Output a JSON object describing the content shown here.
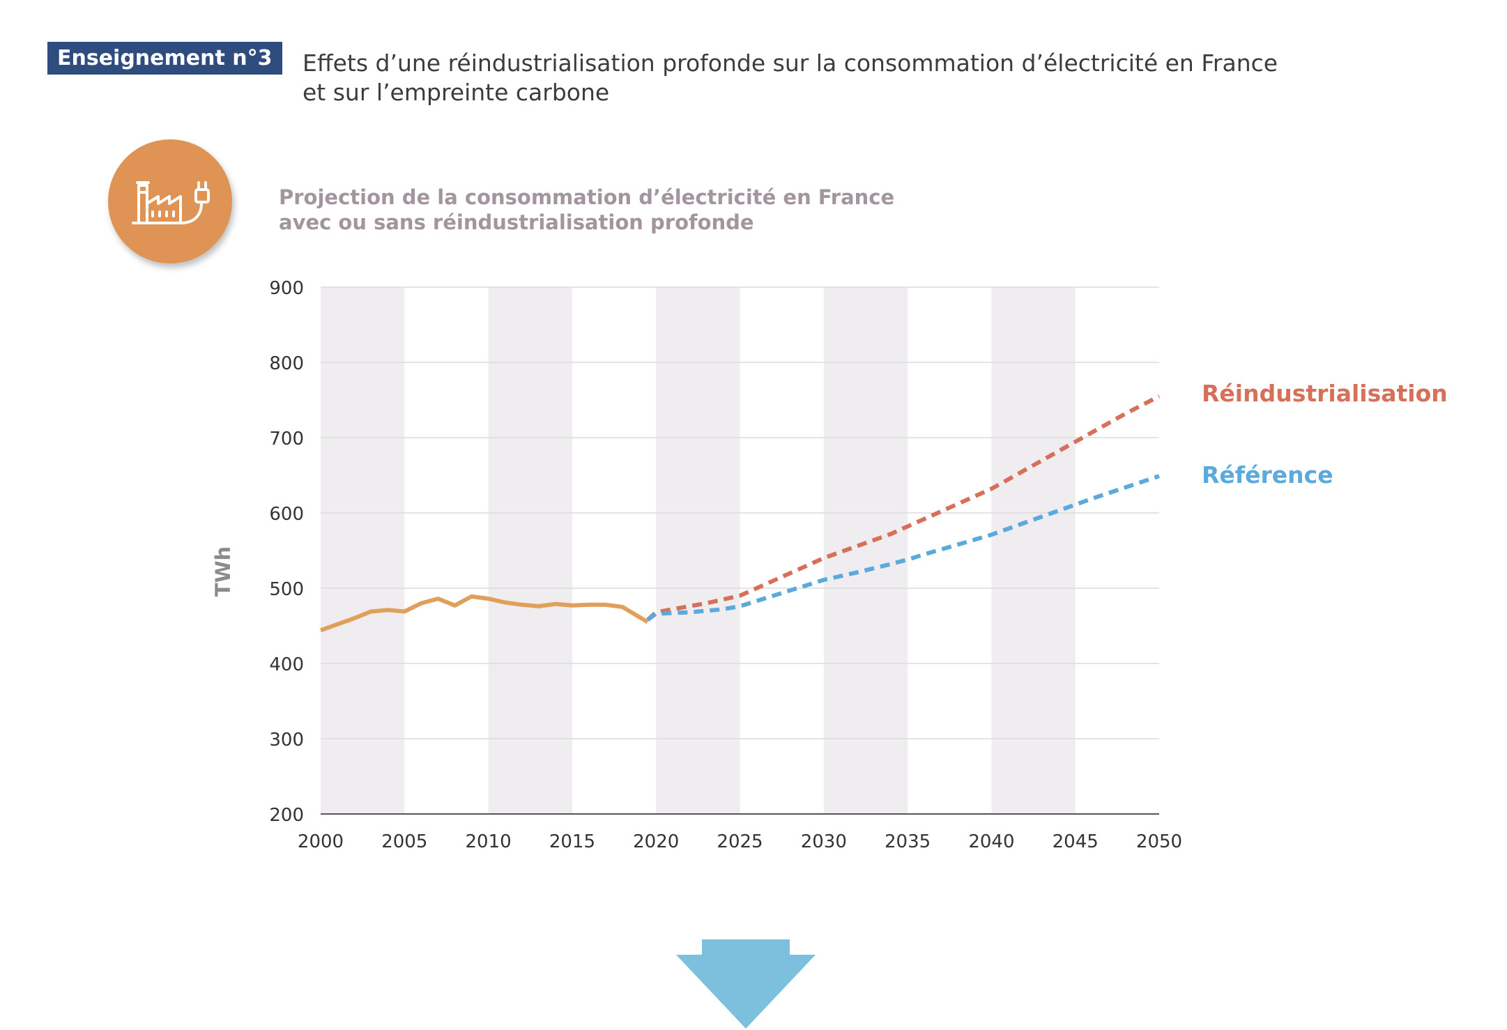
{
  "header": {
    "badge": "Enseignement n°3",
    "title_line1": "Effets d’une réindustrialisation profonde sur la consommation d’électricité en France",
    "title_line2": "et sur l’empreinte carbone"
  },
  "icon": {
    "name": "factory-plug-icon",
    "color": "#df9456"
  },
  "chart_data": {
    "type": "line",
    "title_line1": "Projection de la consommation d’électricité en France",
    "title_line2": "avec ou sans réindustrialisation profonde",
    "xlabel": "",
    "ylabel": "TWh",
    "xlim": [
      2000,
      2050
    ],
    "ylim": [
      200,
      900
    ],
    "x_ticks": [
      2000,
      2005,
      2010,
      2015,
      2020,
      2025,
      2030,
      2035,
      2040,
      2045,
      2050
    ],
    "y_ticks": [
      200,
      300,
      400,
      500,
      600,
      700,
      800,
      900
    ],
    "grid": true,
    "shaded_bands": [
      [
        2000,
        2005
      ],
      [
        2010,
        2015
      ],
      [
        2020,
        2025
      ],
      [
        2030,
        2035
      ],
      [
        2040,
        2045
      ]
    ],
    "series": [
      {
        "id": "historical",
        "style": "solid",
        "color": "#e0a05c",
        "x": [
          2000,
          2001,
          2002,
          2003,
          2004,
          2005,
          2006,
          2007,
          2008,
          2009,
          2010,
          2011,
          2012,
          2013,
          2014,
          2015,
          2016,
          2017,
          2018,
          2019.5
        ],
        "y": [
          444,
          452,
          460,
          469,
          471,
          469,
          480,
          486,
          477,
          489,
          486,
          481,
          478,
          476,
          479,
          477,
          478,
          478,
          475,
          455
        ]
      },
      {
        "id": "reindus",
        "name": "Réindustrialisation",
        "style": "dashed",
        "color": "#d6705a",
        "x": [
          2019.5,
          2020,
          2021,
          2022,
          2023,
          2024,
          2025,
          2026,
          2027,
          2028,
          2029,
          2030,
          2032,
          2034,
          2035,
          2036,
          2038,
          2040,
          2042,
          2044,
          2046,
          2048,
          2050
        ],
        "y": [
          458,
          468,
          472,
          476,
          480,
          485,
          490,
          500,
          510,
          520,
          530,
          540,
          556,
          572,
          582,
          592,
          612,
          632,
          657,
          682,
          707,
          732,
          755
        ]
      },
      {
        "id": "reference",
        "name": "Référence",
        "style": "dashed",
        "color": "#5baadb",
        "x": [
          2019.5,
          2020,
          2021,
          2022,
          2023,
          2024,
          2025,
          2026,
          2027,
          2028,
          2029,
          2030,
          2032,
          2034,
          2035,
          2036,
          2038,
          2040,
          2042,
          2044,
          2046,
          2048,
          2050
        ],
        "y": [
          458,
          466,
          467,
          468,
          470,
          472,
          476,
          483,
          490,
          497,
          504,
          511,
          521,
          532,
          538,
          545,
          558,
          571,
          587,
          603,
          619,
          634,
          649
        ]
      }
    ]
  },
  "arrow": {
    "name": "down-arrow-icon",
    "color": "#7dc0dd"
  }
}
